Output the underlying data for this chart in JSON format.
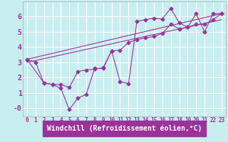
{
  "background_color": "#c8eef0",
  "grid_color": "#ffffff",
  "line_color": "#993399",
  "xlabel": "Windchill (Refroidissement éolien,°C)",
  "xlim": [
    -0.5,
    23.5
  ],
  "ylim": [
    -0.55,
    7.0
  ],
  "yticks": [
    0,
    1,
    2,
    3,
    4,
    5,
    6
  ],
  "ytick_labels": [
    "-0",
    "1",
    "2",
    "3",
    "4",
    "5",
    "6"
  ],
  "xticks": [
    0,
    1,
    2,
    3,
    4,
    5,
    6,
    7,
    8,
    9,
    10,
    11,
    12,
    13,
    14,
    15,
    16,
    17,
    18,
    19,
    20,
    21,
    22,
    23
  ],
  "series1_x": [
    0,
    1,
    2,
    3,
    4,
    5,
    6,
    7,
    8,
    9,
    10,
    11,
    12,
    13,
    14,
    15,
    16,
    17,
    18,
    19,
    20,
    21,
    22,
    23
  ],
  "series1_y": [
    3.2,
    3.0,
    1.65,
    1.55,
    1.3,
    -0.1,
    0.65,
    0.9,
    2.6,
    2.6,
    3.75,
    1.75,
    1.6,
    5.7,
    5.8,
    5.9,
    5.85,
    6.55,
    5.6,
    5.3,
    6.2,
    5.0,
    6.2,
    6.2
  ],
  "series2_x": [
    0,
    2,
    3,
    4,
    5,
    6,
    7,
    8,
    9,
    10,
    11,
    12,
    13,
    14,
    15,
    16,
    17,
    18,
    19,
    20,
    21,
    22,
    23
  ],
  "series2_y": [
    3.2,
    1.65,
    1.55,
    1.55,
    1.35,
    2.4,
    2.5,
    2.55,
    2.65,
    3.75,
    3.8,
    4.3,
    4.5,
    4.6,
    4.7,
    4.9,
    5.5,
    5.2,
    5.3,
    5.5,
    5.5,
    5.8,
    6.2
  ],
  "series3_x": [
    0,
    23
  ],
  "series3_y": [
    3.2,
    6.2
  ],
  "series4_x": [
    0,
    23
  ],
  "series4_y": [
    3.0,
    5.8
  ]
}
